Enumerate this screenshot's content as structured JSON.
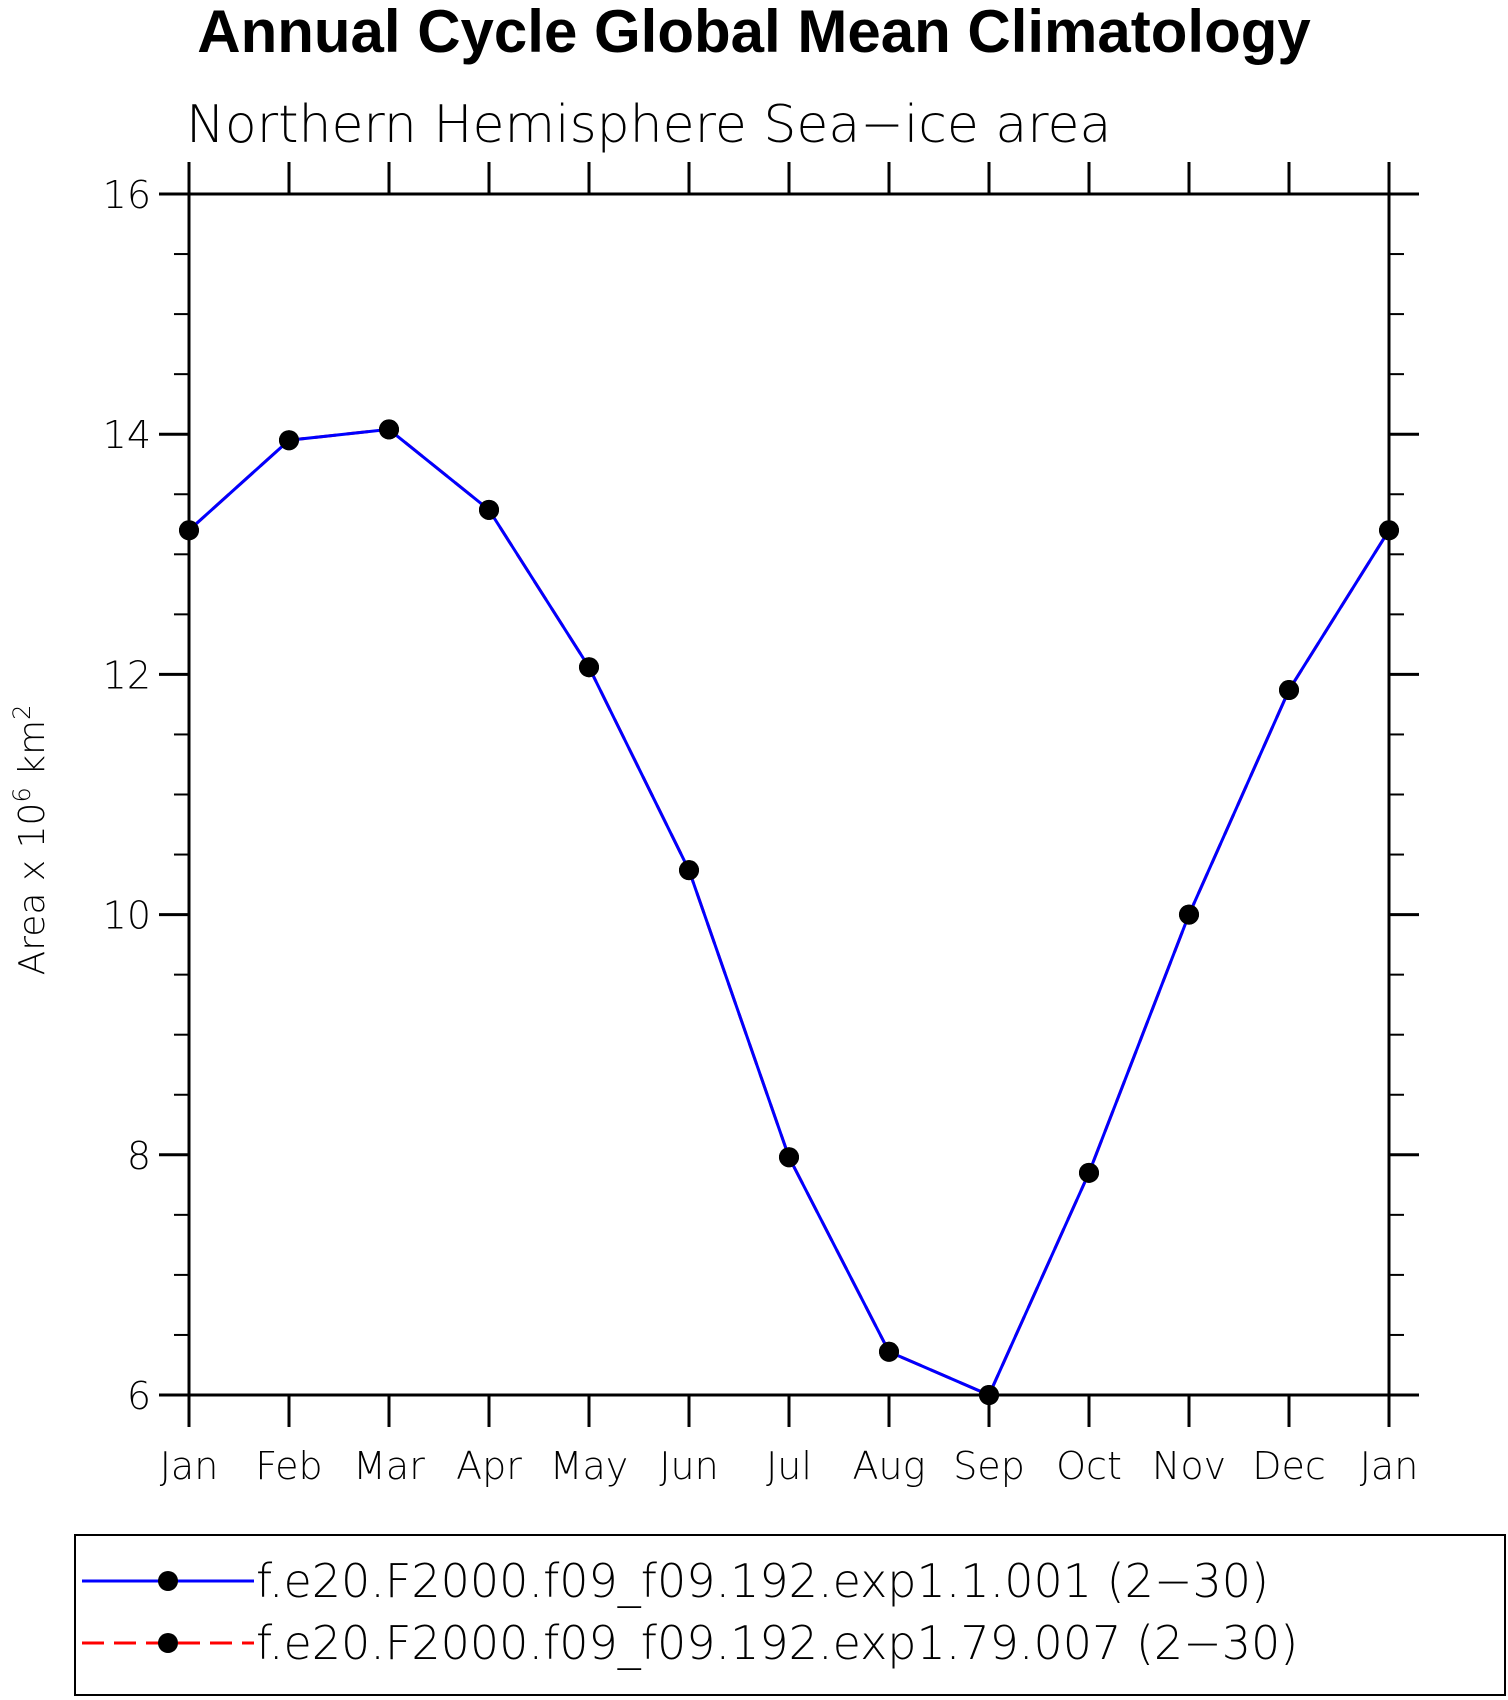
{
  "chart_data": {
    "type": "line",
    "title": "Annual Cycle Global Mean Climatology",
    "subtitle": "Northern Hemisphere Sea−ice area",
    "ylabel": "Area x 10",
    "ylabel_exp": "6",
    "ylabel_unit": " km",
    "ylabel_unit_exp": "2",
    "xlabel": "",
    "ylim": [
      6,
      16
    ],
    "yticks": [
      6,
      8,
      10,
      12,
      14,
      16
    ],
    "yminor_step": 0.5,
    "categories": [
      "Jan",
      "Feb",
      "Mar",
      "Apr",
      "May",
      "Jun",
      "Jul",
      "Aug",
      "Sep",
      "Oct",
      "Nov",
      "Dec",
      "Jan"
    ],
    "series": [
      {
        "name": "f.e20.F2000.f09_f09.192.exp1.1.001 (2−30)",
        "color": "#0000ff",
        "dash": "solid",
        "marker_color": "#000000",
        "values": [
          13.2,
          13.95,
          14.04,
          13.37,
          12.06,
          10.37,
          7.98,
          6.36,
          6.0,
          7.85,
          10.0,
          11.87,
          13.2
        ]
      },
      {
        "name": "f.e20.F2000.f09_f09.192.exp1.79.007 (2−30)",
        "color": "#ff0000",
        "dash": "dashed",
        "marker_color": "#000000",
        "values": [
          13.2,
          13.95,
          14.04,
          13.37,
          12.06,
          10.37,
          7.98,
          6.36,
          6.0,
          7.85,
          10.0,
          11.87,
          13.2
        ]
      }
    ],
    "legend_position": "bottom",
    "grid": false
  }
}
